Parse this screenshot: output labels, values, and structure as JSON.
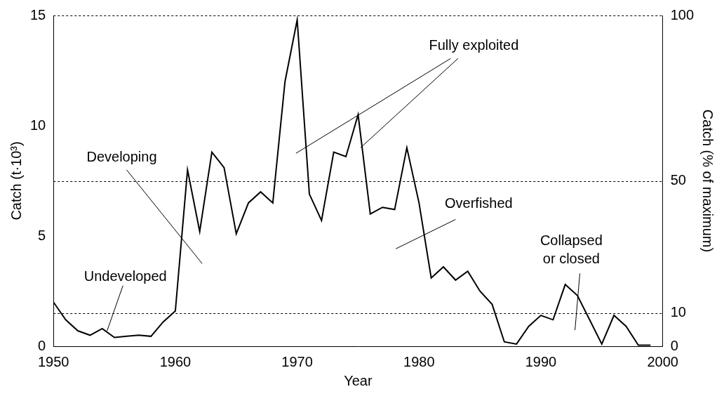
{
  "chart_data": {
    "type": "line",
    "x_label": "Year",
    "y_label": "Catch (t·10³)",
    "y2_label": "Catch (% of maximum)",
    "x": [
      1950,
      1951,
      1952,
      1953,
      1954,
      1955,
      1956,
      1957,
      1958,
      1959,
      1960,
      1961,
      1962,
      1963,
      1964,
      1965,
      1966,
      1967,
      1968,
      1969,
      1970,
      1971,
      1972,
      1973,
      1974,
      1975,
      1976,
      1977,
      1978,
      1979,
      1980,
      1981,
      1982,
      1983,
      1984,
      1985,
      1986,
      1987,
      1988,
      1989,
      1990,
      1991,
      1992,
      1993,
      1994,
      1995,
      1996,
      1997,
      1998,
      1999
    ],
    "values": [
      2.0,
      1.2,
      0.7,
      0.5,
      0.8,
      0.4,
      0.45,
      0.5,
      0.45,
      1.1,
      1.6,
      8.0,
      5.2,
      8.8,
      8.1,
      5.1,
      6.5,
      7.0,
      6.5,
      12.0,
      14.8,
      6.9,
      5.7,
      8.8,
      8.6,
      10.5,
      6.0,
      6.3,
      6.2,
      9.0,
      6.5,
      3.1,
      3.6,
      3.0,
      3.4,
      2.5,
      1.9,
      0.2,
      0.1,
      0.9,
      1.4,
      1.2,
      2.8,
      2.3,
      1.2,
      0.1,
      1.4,
      0.9,
      0.05,
      0.05
    ],
    "color": "#000000",
    "xlim": [
      1950,
      2000
    ],
    "xticks": [
      1950,
      1960,
      1970,
      1980,
      1990,
      2000
    ],
    "ylim": [
      0,
      15
    ],
    "yticks": [
      0,
      5,
      10,
      15
    ],
    "y2lim": [
      0,
      100
    ],
    "y2ticks": [
      0,
      10,
      50,
      100
    ],
    "grid": true,
    "annotations": [
      {
        "text": "Undeveloped"
      },
      {
        "text": "Developing"
      },
      {
        "text": "Fully exploited"
      },
      {
        "text": "Overfished"
      },
      {
        "text": "Collapsed\nor closed"
      }
    ]
  }
}
